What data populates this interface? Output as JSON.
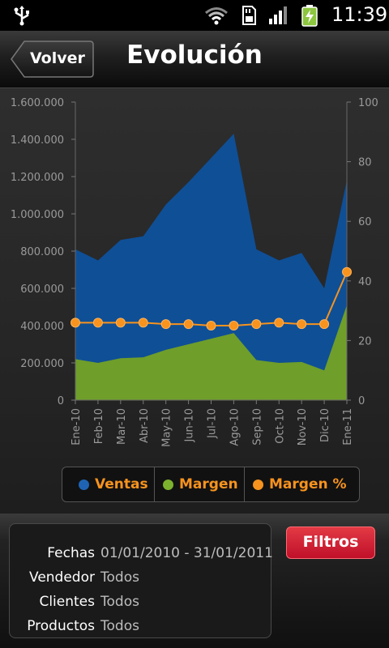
{
  "status_bar": {
    "time": "11:39",
    "icons": [
      "usb-icon",
      "wifi-icon",
      "sd-card-icon",
      "signal-icon",
      "battery-charging-icon"
    ]
  },
  "header": {
    "back_label": "Volver",
    "title": "Evolución"
  },
  "colors": {
    "ventas": "#0f4f96",
    "margen": "#6f9e2a",
    "margen_pct": "#f7931e",
    "legend_text": "#f7931e"
  },
  "chart_data": {
    "type": "area",
    "categories": [
      "Ene-10",
      "Feb-10",
      "Mar-10",
      "Abr-10",
      "May-10",
      "Jun-10",
      "Jul-10",
      "Ago-10",
      "Sep-10",
      "Oct-10",
      "Nov-10",
      "Dic-10",
      "Ene-11"
    ],
    "series": [
      {
        "name": "Ventas",
        "axis": "left",
        "kind": "area",
        "values": [
          810000,
          750000,
          860000,
          880000,
          1050000,
          1170000,
          1300000,
          1430000,
          810000,
          750000,
          790000,
          600000,
          1180000
        ]
      },
      {
        "name": "Margen",
        "axis": "left",
        "kind": "area",
        "values": [
          220000,
          200000,
          225000,
          230000,
          270000,
          300000,
          330000,
          360000,
          215000,
          200000,
          205000,
          160000,
          510000
        ]
      },
      {
        "name": "Margen %",
        "axis": "right",
        "kind": "line",
        "values": [
          26,
          26,
          26,
          26,
          25.5,
          25.5,
          25,
          25,
          25.5,
          26,
          25.5,
          25.5,
          43
        ]
      }
    ],
    "ylim_left": [
      0,
      1600000
    ],
    "ylim_right": [
      0,
      100
    ],
    "yticks_left": [
      "0",
      "200.000",
      "400.000",
      "600.000",
      "800.000",
      "1.000.000",
      "1.200.000",
      "1.400.000",
      "1.600.000"
    ],
    "yticks_right": [
      "0",
      "20",
      "40",
      "60",
      "80",
      "100"
    ],
    "legend_position": "bottom"
  },
  "filters": {
    "rows": [
      {
        "label": "Fechas",
        "value": "01/01/2010 - 31/01/2011"
      },
      {
        "label": "Vendedor",
        "value": "Todos"
      },
      {
        "label": "Clientes",
        "value": "Todos"
      },
      {
        "label": "Productos",
        "value": "Todos"
      }
    ],
    "button_label": "Filtros"
  }
}
